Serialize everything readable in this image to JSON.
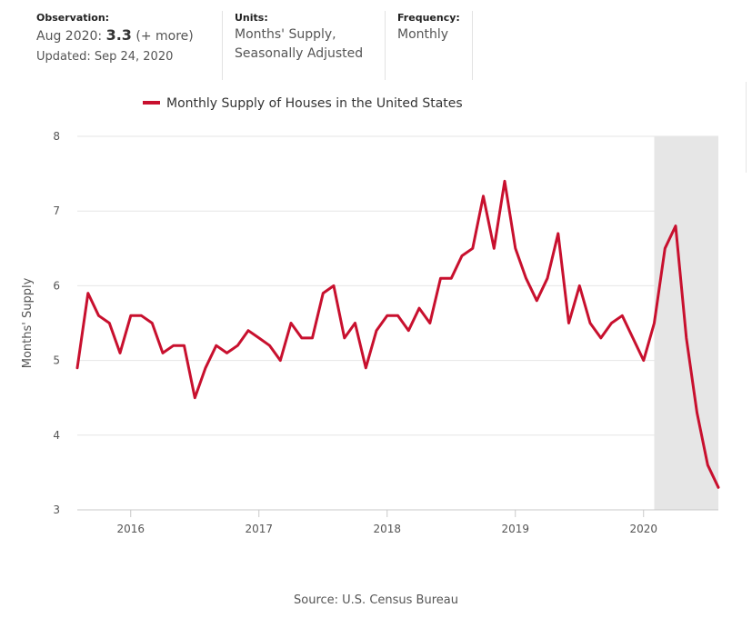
{
  "header": {
    "observation_label": "Observation:",
    "observation_date": "Aug 2020:",
    "observation_value": "3.3",
    "observation_more": "(+ more)",
    "updated": "Updated: Sep 24, 2020",
    "units_label": "Units:",
    "units_line1": "Months' Supply,",
    "units_line2": "Seasonally Adjusted",
    "frequency_label": "Frequency:",
    "frequency_value": "Monthly"
  },
  "source": "Source: U.S. Census Bureau",
  "chart_data": {
    "type": "line",
    "legend_position": "top-left",
    "ylabel": "Months' Supply",
    "xlabel": "",
    "ylim": [
      3,
      8
    ],
    "yticks": [
      3,
      4,
      5,
      6,
      7,
      8
    ],
    "xlim": [
      "2015-08",
      "2020-08"
    ],
    "xticks": [
      "2016",
      "2017",
      "2018",
      "2019",
      "2020"
    ],
    "grid": "horizontal",
    "recession_shading": {
      "start": "2020-02",
      "end": "2020-08",
      "color": "#e6e6e6"
    },
    "series": [
      {
        "name": "Monthly Supply of Houses in the United States",
        "color": "#c8102e",
        "x": [
          "2015-08",
          "2015-09",
          "2015-10",
          "2015-11",
          "2015-12",
          "2016-01",
          "2016-02",
          "2016-03",
          "2016-04",
          "2016-05",
          "2016-06",
          "2016-07",
          "2016-08",
          "2016-09",
          "2016-10",
          "2016-11",
          "2016-12",
          "2017-01",
          "2017-02",
          "2017-03",
          "2017-04",
          "2017-05",
          "2017-06",
          "2017-07",
          "2017-08",
          "2017-09",
          "2017-10",
          "2017-11",
          "2017-12",
          "2018-01",
          "2018-02",
          "2018-03",
          "2018-04",
          "2018-05",
          "2018-06",
          "2018-07",
          "2018-08",
          "2018-09",
          "2018-10",
          "2018-11",
          "2018-12",
          "2019-01",
          "2019-02",
          "2019-03",
          "2019-04",
          "2019-05",
          "2019-06",
          "2019-07",
          "2019-08",
          "2019-09",
          "2019-10",
          "2019-11",
          "2019-12",
          "2020-01",
          "2020-02",
          "2020-03",
          "2020-04",
          "2020-05",
          "2020-06",
          "2020-07",
          "2020-08"
        ],
        "values": [
          4.9,
          5.9,
          5.6,
          5.5,
          5.1,
          5.6,
          5.6,
          5.5,
          5.1,
          5.2,
          5.2,
          4.5,
          4.9,
          5.2,
          5.1,
          5.2,
          5.4,
          5.3,
          5.2,
          5.0,
          5.5,
          5.3,
          5.3,
          5.9,
          6.0,
          5.3,
          5.5,
          4.9,
          5.4,
          5.6,
          5.6,
          5.4,
          5.7,
          5.5,
          6.1,
          6.1,
          6.4,
          6.5,
          7.2,
          6.5,
          7.4,
          6.5,
          6.1,
          5.8,
          6.1,
          6.7,
          5.5,
          6.0,
          5.5,
          5.3,
          5.5,
          5.6,
          5.3,
          5.0,
          5.5,
          6.5,
          6.8,
          5.3,
          4.3,
          3.6,
          3.3
        ]
      }
    ]
  }
}
